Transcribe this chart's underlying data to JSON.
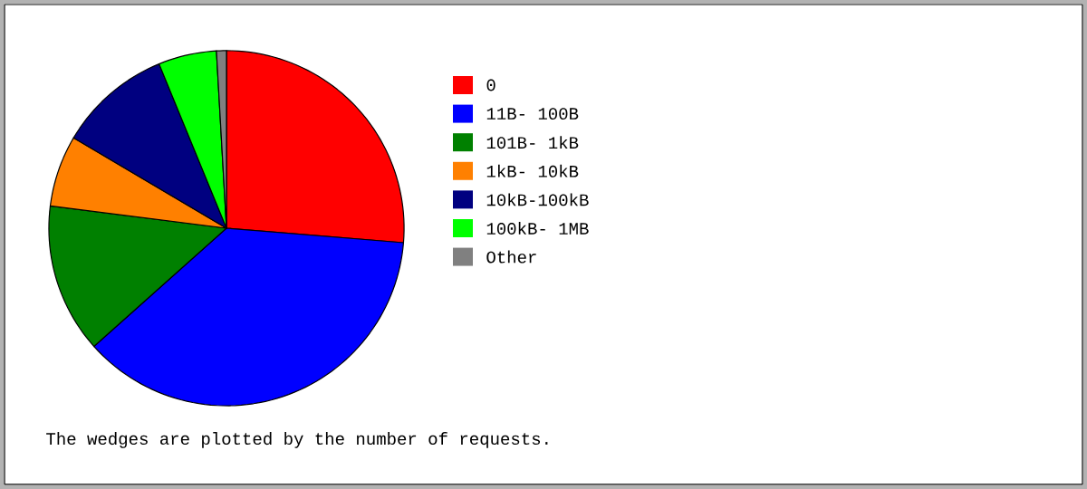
{
  "chart_data": {
    "type": "pie",
    "categories": [
      "0",
      "11B- 100B",
      "101B- 1kB",
      "1kB- 10kB",
      "10kB-100kB",
      "100kB- 1MB",
      "Other"
    ],
    "values": [
      26.3,
      37.1,
      13.6,
      6.5,
      10.3,
      5.3,
      0.9
    ],
    "colors": [
      "#ff0000",
      "#0000ff",
      "#008000",
      "#ff8000",
      "#000080",
      "#00ff00",
      "#808080"
    ],
    "legend": "right",
    "annotations": [
      "The wedges are plotted by the number of requests."
    ]
  }
}
